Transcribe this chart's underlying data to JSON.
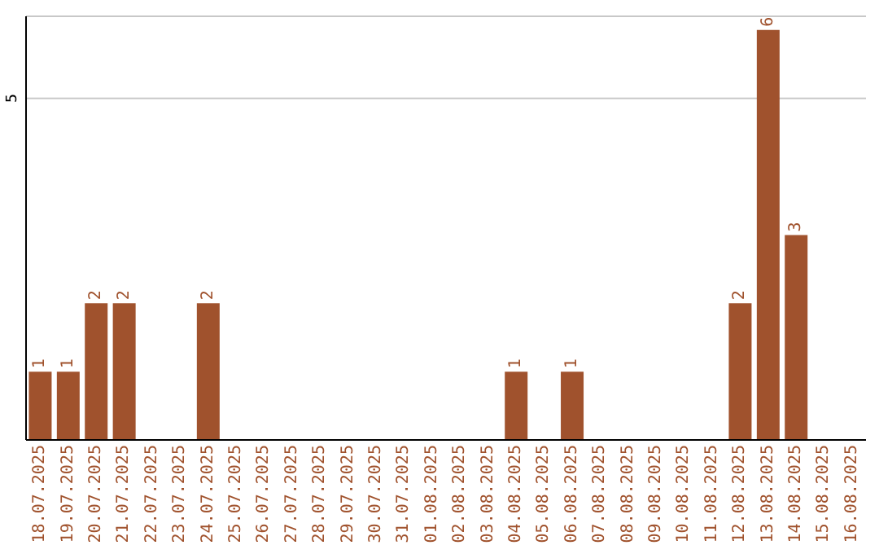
{
  "chart_data": {
    "type": "bar",
    "categories": [
      "18.07.2025",
      "19.07.2025",
      "20.07.2025",
      "21.07.2025",
      "22.07.2025",
      "23.07.2025",
      "24.07.2025",
      "25.07.2025",
      "26.07.2025",
      "27.07.2025",
      "28.07.2025",
      "29.07.2025",
      "30.07.2025",
      "31.07.2025",
      "01.08.2025",
      "02.08.2025",
      "03.08.2025",
      "04.08.2025",
      "05.08.2025",
      "06.08.2025",
      "07.08.2025",
      "08.08.2025",
      "09.08.2025",
      "10.08.2025",
      "11.08.2025",
      "12.08.2025",
      "13.08.2025",
      "14.08.2025",
      "15.08.2025",
      "16.08.2025"
    ],
    "values": [
      1,
      1,
      2,
      2,
      0,
      0,
      2,
      0,
      0,
      0,
      0,
      0,
      0,
      0,
      0,
      0,
      0,
      1,
      0,
      1,
      0,
      0,
      0,
      0,
      0,
      2,
      6,
      3,
      0,
      0
    ],
    "value_labels": [
      "1",
      "1",
      "2",
      "2",
      null,
      null,
      "2",
      null,
      null,
      null,
      null,
      null,
      null,
      null,
      null,
      null,
      null,
      "1",
      null,
      "1",
      null,
      null,
      null,
      null,
      null,
      "2",
      "6",
      "3",
      null,
      null
    ],
    "color": "#a0522d",
    "ylim": [
      0,
      6.2
    ],
    "yticks": [
      5
    ],
    "grid": "y"
  }
}
